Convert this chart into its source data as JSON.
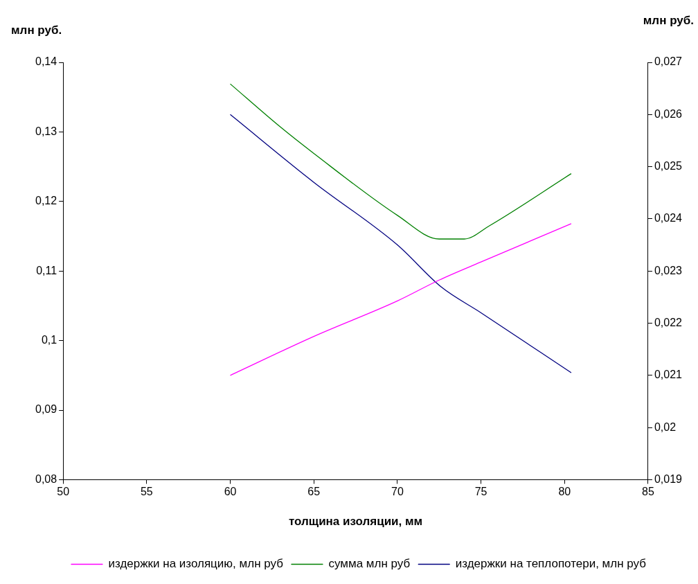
{
  "chart_data": {
    "type": "line",
    "xlabel": "толщина изоляции, мм",
    "ylabel": "млн руб.",
    "y2label": "млн руб.",
    "xlim": [
      50,
      85
    ],
    "xticks": [
      50,
      55,
      60,
      65,
      70,
      75,
      80,
      85
    ],
    "ylim": [
      0.08,
      0.14
    ],
    "yticks": [
      {
        "value": 0.08,
        "label": "0,08"
      },
      {
        "value": 0.09,
        "label": "0,09"
      },
      {
        "value": 0.1,
        "label": "0,1"
      },
      {
        "value": 0.11,
        "label": "0,11"
      },
      {
        "value": 0.12,
        "label": "0,12"
      },
      {
        "value": 0.13,
        "label": "0,13"
      },
      {
        "value": 0.14,
        "label": "0,14"
      }
    ],
    "y2lim": [
      0.019,
      0.027
    ],
    "y2ticks": [
      {
        "value": 0.019,
        "label": "0,019"
      },
      {
        "value": 0.02,
        "label": "0,02"
      },
      {
        "value": 0.021,
        "label": "0,021"
      },
      {
        "value": 0.022,
        "label": "0,022"
      },
      {
        "value": 0.023,
        "label": "0,023"
      },
      {
        "value": 0.024,
        "label": "0,024"
      },
      {
        "value": 0.025,
        "label": "0,025"
      },
      {
        "value": 0.026,
        "label": "0,026"
      },
      {
        "value": 0.027,
        "label": "0,027"
      }
    ],
    "grid": false,
    "legend": "bottom",
    "marker": "none",
    "line_style": "solid",
    "series": [
      {
        "name": "издержки на изоляцию, млн руб",
        "color": "#ff00ff",
        "x": [
          60,
          65,
          70,
          72.5,
          75,
          80.4
        ],
        "values": [
          0.095,
          0.1006,
          0.1057,
          0.1087,
          0.1113,
          0.1168
        ]
      },
      {
        "name": "сумма млн руб",
        "color": "#008000",
        "x": [
          60,
          63,
          65,
          70,
          72.5,
          74,
          75.5,
          80.4
        ],
        "values": [
          0.1369,
          0.1307,
          0.1269,
          0.118,
          0.1146,
          0.1146,
          0.1165,
          0.124
        ]
      },
      {
        "name": "издержки на теплопотери, млн руб",
        "color": "#000080",
        "axis": "y2",
        "x": [
          60,
          65,
          70,
          72.6,
          75,
          80.4
        ],
        "values": [
          0.026,
          0.0247,
          0.0235,
          0.0227,
          0.0222,
          0.02105
        ]
      }
    ]
  }
}
